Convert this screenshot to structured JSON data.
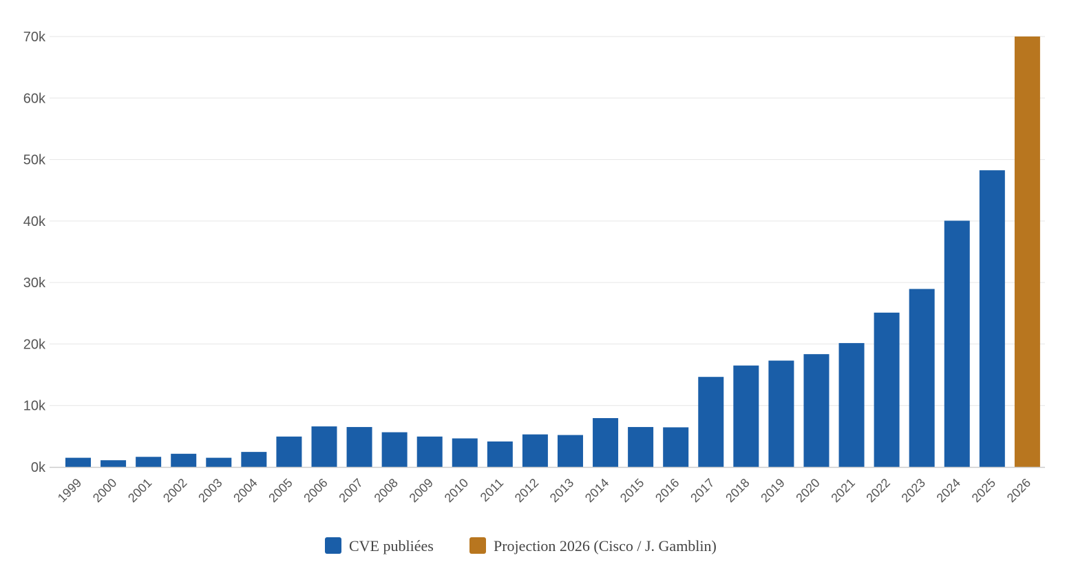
{
  "chart_data": {
    "type": "bar",
    "title": "",
    "xlabel": "",
    "ylabel": "",
    "ylim": [
      0,
      70000
    ],
    "y_ticks": [
      {
        "value": 0,
        "label": "0k"
      },
      {
        "value": 10000,
        "label": "10k"
      },
      {
        "value": 20000,
        "label": "20k"
      },
      {
        "value": 30000,
        "label": "30k"
      },
      {
        "value": 40000,
        "label": "40k"
      },
      {
        "value": 50000,
        "label": "50k"
      },
      {
        "value": 60000,
        "label": "60k"
      },
      {
        "value": 70000,
        "label": "70k"
      }
    ],
    "grid": true,
    "legend_position": "bottom-center",
    "categories": [
      "1999",
      "2000",
      "2001",
      "2002",
      "2003",
      "2004",
      "2005",
      "2006",
      "2007",
      "2008",
      "2009",
      "2010",
      "2011",
      "2012",
      "2013",
      "2014",
      "2015",
      "2016",
      "2017",
      "2018",
      "2019",
      "2020",
      "2021",
      "2022",
      "2023",
      "2024",
      "2025",
      "2026"
    ],
    "series": [
      {
        "name": "CVE publiées",
        "color": "#1a5ea8",
        "values": [
          1500,
          1100,
          1650,
          2150,
          1500,
          2450,
          4950,
          6600,
          6500,
          5650,
          4950,
          4650,
          4150,
          5300,
          5200,
          7950,
          6500,
          6450,
          14650,
          16500,
          17300,
          18350,
          20150,
          25100,
          28950,
          40050,
          48250,
          null
        ]
      },
      {
        "name": "Projection 2026 (Cisco / J. Gamblin)",
        "color": "#b8761f",
        "values": [
          null,
          null,
          null,
          null,
          null,
          null,
          null,
          null,
          null,
          null,
          null,
          null,
          null,
          null,
          null,
          null,
          null,
          null,
          null,
          null,
          null,
          null,
          null,
          null,
          null,
          null,
          null,
          70000
        ]
      }
    ]
  }
}
